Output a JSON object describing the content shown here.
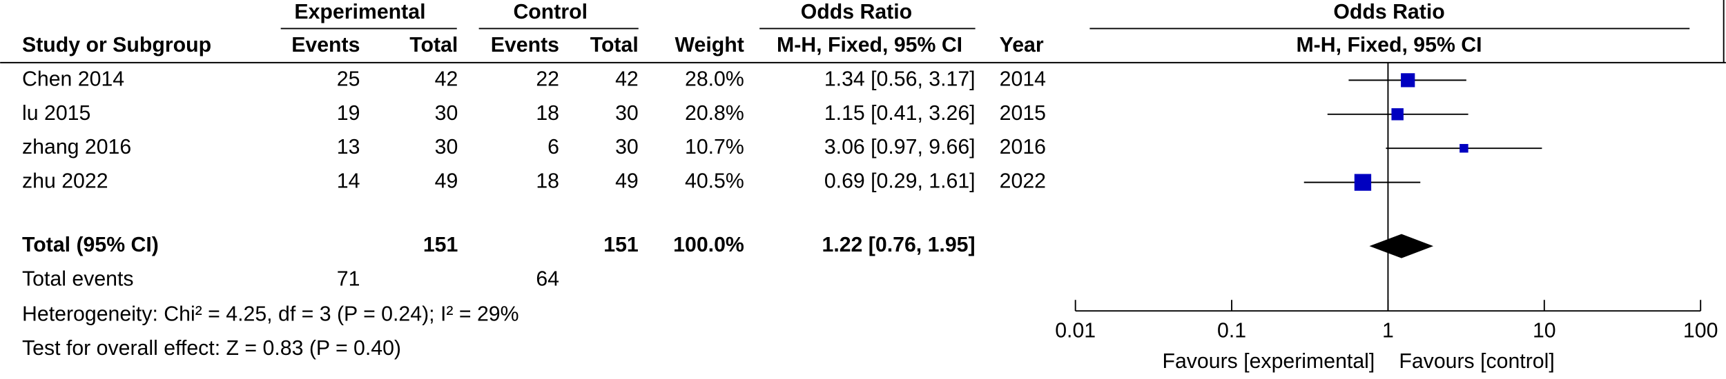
{
  "chart_data": {
    "type": "forest",
    "group_headers": {
      "experimental": "Experimental",
      "control": "Control",
      "odds_ratio": "Odds Ratio",
      "plot": "Odds Ratio"
    },
    "column_headers": {
      "study": "Study or Subgroup",
      "exp_events": "Events",
      "exp_total": "Total",
      "ctl_events": "Events",
      "ctl_total": "Total",
      "weight": "Weight",
      "ci": "M-H, Fixed, 95% CI",
      "year": "Year",
      "plot": "M-H, Fixed, 95% CI"
    },
    "studies": [
      {
        "name": "Chen 2014",
        "exp_events": 25,
        "exp_total": 42,
        "ctl_events": 22,
        "ctl_total": 42,
        "weight": 28.0,
        "weight_label": "28.0%",
        "or": 1.34,
        "lower": 0.56,
        "upper": 3.17,
        "ci_label": "1.34 [0.56, 3.17]",
        "year": 2014
      },
      {
        "name": "lu 2015",
        "exp_events": 19,
        "exp_total": 30,
        "ctl_events": 18,
        "ctl_total": 30,
        "weight": 20.8,
        "weight_label": "20.8%",
        "or": 1.15,
        "lower": 0.41,
        "upper": 3.26,
        "ci_label": "1.15 [0.41, 3.26]",
        "year": 2015
      },
      {
        "name": "zhang  2016",
        "exp_events": 13,
        "exp_total": 30,
        "ctl_events": 6,
        "ctl_total": 30,
        "weight": 10.7,
        "weight_label": "10.7%",
        "or": 3.06,
        "lower": 0.97,
        "upper": 9.66,
        "ci_label": "3.06 [0.97, 9.66]",
        "year": 2016
      },
      {
        "name": "zhu 2022",
        "exp_events": 14,
        "exp_total": 49,
        "ctl_events": 18,
        "ctl_total": 49,
        "weight": 40.5,
        "weight_label": "40.5%",
        "or": 0.69,
        "lower": 0.29,
        "upper": 1.61,
        "ci_label": "0.69 [0.29, 1.61]",
        "year": 2022
      }
    ],
    "total": {
      "name": "Total (95% CI)",
      "exp_total": 151,
      "ctl_total": 151,
      "weight": 100.0,
      "weight_label": "100.0%",
      "or": 1.22,
      "lower": 0.76,
      "upper": 1.95,
      "ci_label": "1.22 [0.76, 1.95]"
    },
    "total_events": {
      "name": "Total events",
      "exp_events": 71,
      "ctl_events": 64
    },
    "heterogeneity": "Heterogeneity: Chi² = 4.25, df = 3 (P = 0.24); I² = 29%",
    "overall_effect": "Test for overall effect: Z = 0.83 (P = 0.40)",
    "xlim": [
      0.01,
      100
    ],
    "xticks": [
      0.01,
      0.1,
      1,
      10,
      100
    ],
    "log_scale": true,
    "color": "#0000c0",
    "favours_left": "Favours [experimental]",
    "favours_right": "Favours [control]"
  }
}
